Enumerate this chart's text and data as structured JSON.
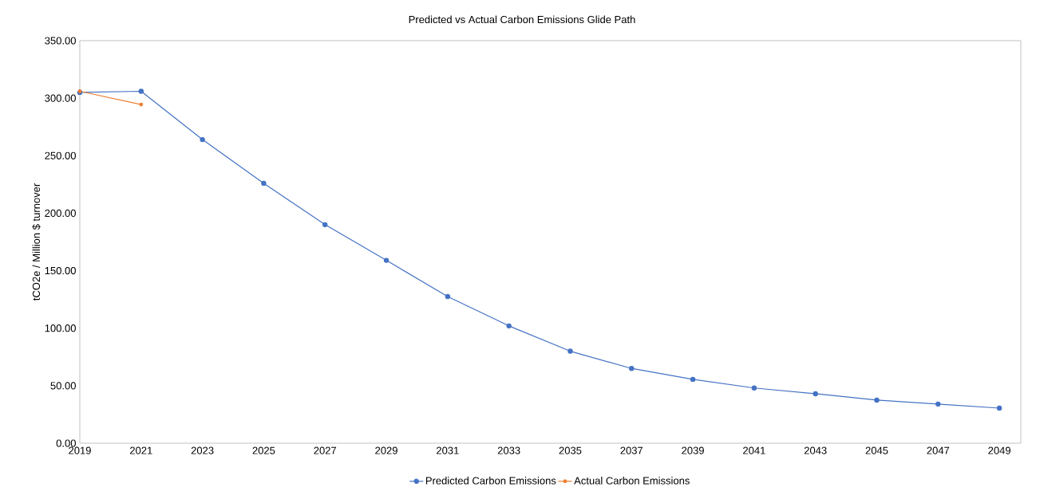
{
  "chart_data": {
    "type": "line",
    "title": "Predicted vs Actual Carbon Emissions Glide Path",
    "ylabel": "tCO2e / Million $ turnover",
    "x": [
      2019,
      2021,
      2023,
      2025,
      2027,
      2029,
      2031,
      2033,
      2035,
      2037,
      2039,
      2041,
      2043,
      2045,
      2047,
      2049
    ],
    "series": [
      {
        "name": "Predicted Carbon Emissions",
        "color": "#4472c4",
        "values": [
          305,
          306,
          264,
          226,
          190,
          159,
          127.5,
          102,
          80,
          65,
          55.5,
          48,
          43,
          37.5,
          34,
          30.5
        ]
      },
      {
        "name": "Actual Carbon Emissions",
        "color": "#ed7d31",
        "x": [
          2019,
          2021
        ],
        "values": [
          306,
          294.5
        ]
      }
    ],
    "xlim": [
      2019,
      2049.7
    ],
    "xticks": [
      2019,
      2021,
      2023,
      2025,
      2027,
      2029,
      2031,
      2033,
      2035,
      2037,
      2039,
      2041,
      2043,
      2045,
      2047,
      2049
    ],
    "ylim": [
      0,
      350
    ],
    "yticks": [
      {
        "value": 0,
        "label": "0.00"
      },
      {
        "value": 50,
        "label": "50.00"
      },
      {
        "value": 100,
        "label": "100.00"
      },
      {
        "value": 150,
        "label": "150.00"
      },
      {
        "value": 200,
        "label": "200.00"
      },
      {
        "value": 250,
        "label": "250.00"
      },
      {
        "value": 300,
        "label": "300.00"
      },
      {
        "value": 350,
        "label": "350.00"
      }
    ],
    "grid": false,
    "legend": "bottom",
    "marker": "circle",
    "line_style": "solid"
  }
}
